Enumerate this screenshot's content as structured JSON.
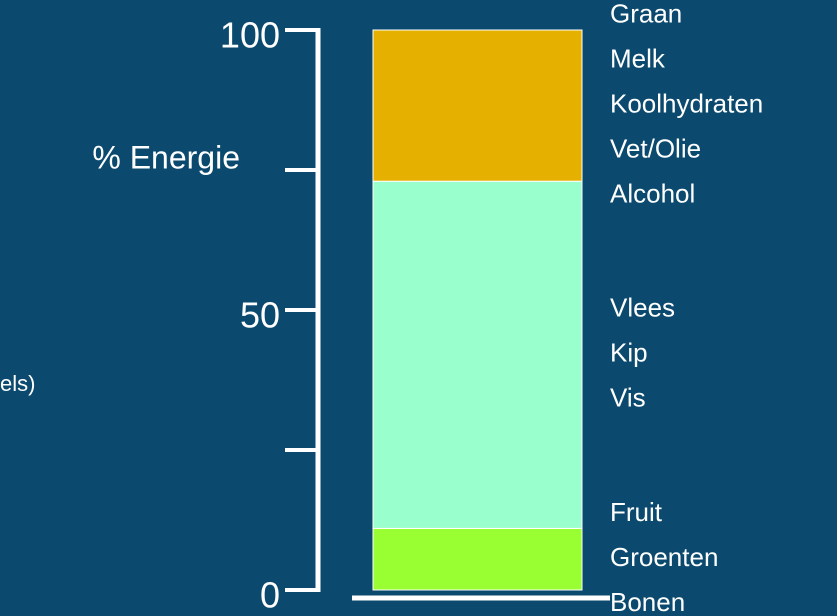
{
  "chart_data": {
    "type": "stacked_bar",
    "y_label": "% Energie",
    "annotation": "els)",
    "ylim": [
      0,
      100
    ],
    "yticks": [
      0,
      50,
      100
    ],
    "minor_yticks": [
      25,
      75
    ],
    "series": [
      {
        "labels": [
          "Fruit",
          "Groenten",
          "Bonen"
        ],
        "color": "#99ff33",
        "values": [
          11
        ]
      },
      {
        "labels": [
          "Vlees",
          "Kip",
          "Vis"
        ],
        "color": "#99ffcc",
        "values": [
          62
        ]
      },
      {
        "labels": [
          "Graan",
          "Melk",
          "Koolhydraten",
          "Vet/Olie",
          "Alcohol"
        ],
        "color": "#e6b000",
        "values": [
          27
        ]
      }
    ]
  }
}
